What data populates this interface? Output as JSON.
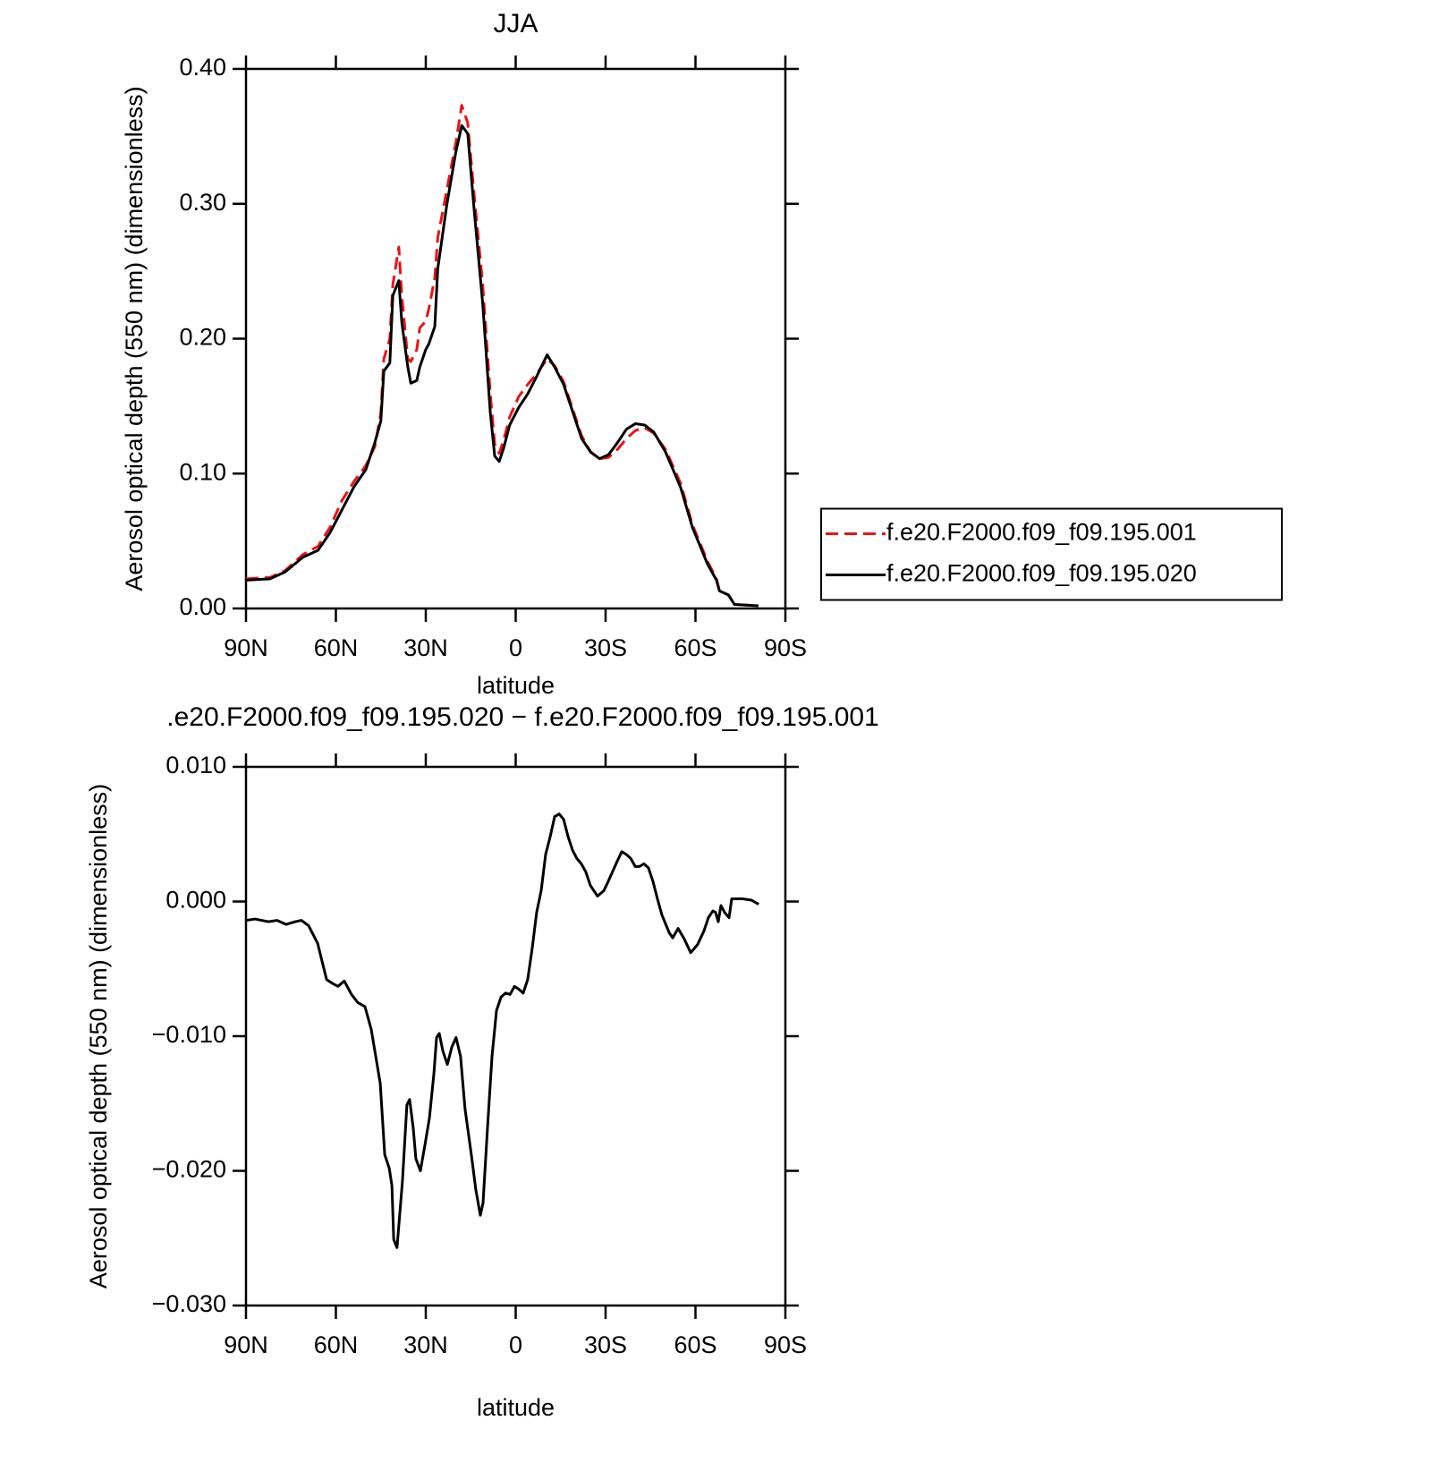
{
  "chart_data": [
    {
      "type": "line",
      "title": "JJA",
      "xlabel": "latitude",
      "ylabel": "Aerosol optical depth (550 nm) (dimensionless)",
      "x": [
        90,
        82,
        77,
        71,
        66,
        62,
        58,
        54,
        50,
        47,
        45,
        44,
        42,
        41,
        39,
        38,
        36,
        35,
        33,
        32,
        30,
        29,
        27,
        26,
        23,
        20,
        18,
        16,
        14,
        11,
        8.5,
        7,
        5.5,
        4,
        2,
        -1,
        -4,
        -7,
        -10.5,
        -13,
        -16,
        -19,
        -22,
        -25,
        -28,
        -31,
        -34,
        -37,
        -40,
        -43,
        -46,
        -50,
        -55,
        -59,
        -64,
        -67,
        -68,
        -71,
        -73,
        -81
      ],
      "series": [
        {
          "name": "f.e20.F2000.f09_f09.195.001",
          "color": "#e8141a",
          "dash": true,
          "values": [
            0.022,
            0.023,
            0.028,
            0.04,
            0.046,
            0.06,
            0.08,
            0.094,
            0.106,
            0.12,
            0.145,
            0.185,
            0.2,
            0.24,
            0.268,
            0.232,
            0.185,
            0.183,
            0.192,
            0.208,
            0.213,
            0.222,
            0.245,
            0.275,
            0.31,
            0.345,
            0.373,
            0.36,
            0.31,
            0.24,
            0.16,
            0.122,
            0.115,
            0.125,
            0.142,
            0.157,
            0.166,
            0.174,
            0.185,
            0.18,
            0.168,
            0.148,
            0.128,
            0.116,
            0.111,
            0.112,
            0.118,
            0.126,
            0.132,
            0.134,
            0.13,
            0.118,
            0.093,
            0.062,
            0.035,
            0.022,
            0.013,
            0.01,
            0.003,
            0.002
          ]
        },
        {
          "name": "f.e20.F2000.f09_f09.195.020",
          "color": "#000000",
          "dash": false,
          "values": [
            0.021,
            0.022,
            0.027,
            0.038,
            0.043,
            0.056,
            0.073,
            0.09,
            0.103,
            0.123,
            0.139,
            0.176,
            0.182,
            0.232,
            0.243,
            0.212,
            0.179,
            0.167,
            0.169,
            0.179,
            0.192,
            0.196,
            0.209,
            0.252,
            0.299,
            0.338,
            0.358,
            0.352,
            0.299,
            0.226,
            0.146,
            0.113,
            0.109,
            0.119,
            0.136,
            0.149,
            0.159,
            0.172,
            0.188,
            0.179,
            0.166,
            0.146,
            0.126,
            0.116,
            0.111,
            0.114,
            0.123,
            0.133,
            0.137,
            0.136,
            0.131,
            0.116,
            0.09,
            0.06,
            0.033,
            0.021,
            0.013,
            0.01,
            0.003,
            0.002
          ]
        }
      ],
      "xlim": [
        90,
        -90
      ],
      "xticks": [
        {
          "value": 90,
          "label": "90N"
        },
        {
          "value": 60,
          "label": "60N"
        },
        {
          "value": 30,
          "label": "30N"
        },
        0,
        {
          "value": -30,
          "label": "30S"
        },
        {
          "value": -60,
          "label": "60S"
        },
        {
          "value": -90,
          "label": "90S"
        }
      ],
      "ylim": [
        0,
        0.4
      ],
      "yticks": [
        {
          "value": 0,
          "label": "0.00"
        },
        {
          "value": 0.1,
          "label": "0.10"
        },
        {
          "value": 0.2,
          "label": "0.20"
        },
        {
          "value": 0.3,
          "label": "0.30"
        },
        {
          "value": 0.4,
          "label": "0.40"
        }
      ],
      "legend": "right"
    },
    {
      "type": "line",
      "title": ".e20.F2000.f09_f09.195.020 − f.e20.F2000.f09_f09.195.001",
      "xlabel": "latitude",
      "ylabel": "Aerosol optical depth (550 nm) (dimensionless)",
      "x": [
        90,
        87,
        82.5,
        79.6,
        76.6,
        73.6,
        71.5,
        69.1,
        66.1,
        63.1,
        61,
        59.3,
        57.2,
        54.8,
        52.7,
        50.3,
        48.2,
        45.2,
        43.7,
        42.2,
        41.3,
        40.7,
        39.6,
        37.8,
        36.3,
        35.4,
        34.2,
        33.3,
        31.8,
        30.3,
        28.8,
        27.3,
        26.4,
        25.5,
        24.3,
        22.8,
        21.3,
        19.9,
        18.4,
        16.9,
        14.8,
        13.3,
        11.8,
        10.9,
        9.4,
        7.9,
        6.4,
        4.9,
        3.4,
        1.9,
        0.4,
        -1,
        -2.5,
        -4,
        -5.5,
        -7,
        -8.5,
        -10,
        -11.5,
        -13,
        -14.5,
        -16,
        -17.5,
        -19,
        -20.4,
        -21.9,
        -23.4,
        -24.9,
        -27.3,
        -29.4,
        -30.9,
        -33.9,
        -35.4,
        -36.9,
        -38.4,
        -39.9,
        -41.3,
        -42.8,
        -44.3,
        -45.8,
        -47.3,
        -48.8,
        -51.2,
        -52.4,
        -54.2,
        -56.3,
        -58.4,
        -60.7,
        -62.8,
        -64.3,
        -65.8,
        -66.7,
        -67.6,
        -68.5,
        -69.7,
        -71.2,
        -72.1,
        -75.7,
        -78.7,
        -81.1
      ],
      "series": [
        {
          "color": "#000000",
          "dash": false,
          "values": [
            -0.0014,
            -0.0013,
            -0.0015,
            -0.0014,
            -0.0017,
            -0.0015,
            -0.0014,
            -0.0018,
            -0.0031,
            -0.0058,
            -0.0061,
            -0.0063,
            -0.0059,
            -0.0069,
            -0.0075,
            -0.0078,
            -0.0095,
            -0.0135,
            -0.0188,
            -0.0198,
            -0.0211,
            -0.0251,
            -0.0257,
            -0.0208,
            -0.0151,
            -0.0147,
            -0.0168,
            -0.0191,
            -0.02,
            -0.0181,
            -0.0161,
            -0.0128,
            -0.0101,
            -0.0098,
            -0.0111,
            -0.0121,
            -0.0108,
            -0.0101,
            -0.0115,
            -0.0154,
            -0.0188,
            -0.0214,
            -0.0233,
            -0.0224,
            -0.0168,
            -0.0115,
            -0.0081,
            -0.0071,
            -0.0068,
            -0.0069,
            -0.0063,
            -0.0065,
            -0.0068,
            -0.0058,
            -0.0035,
            -0.0008,
            0.0008,
            0.0035,
            0.0048,
            0.0063,
            0.0065,
            0.0061,
            0.0048,
            0.0038,
            0.0032,
            0.0028,
            0.0022,
            0.0012,
            0.0004,
            0.0008,
            0.0015,
            0.003,
            0.0037,
            0.0035,
            0.0032,
            0.0026,
            0.0026,
            0.0028,
            0.0025,
            0.0015,
            0.0002,
            -0.001,
            -0.0023,
            -0.0027,
            -0.002,
            -0.0028,
            -0.0038,
            -0.0032,
            -0.0022,
            -0.0012,
            -0.0007,
            -0.0008,
            -0.0015,
            -0.0003,
            -0.0008,
            -0.0012,
            0.0002,
            0.0002,
            0.0001,
            -0.0002
          ]
        }
      ],
      "xlim": [
        90,
        -90
      ],
      "xticks": [
        {
          "value": 90,
          "label": "90N"
        },
        {
          "value": 60,
          "label": "60N"
        },
        {
          "value": 30,
          "label": "30N"
        },
        0,
        {
          "value": -30,
          "label": "30S"
        },
        {
          "value": -60,
          "label": "60S"
        },
        {
          "value": -90,
          "label": "90S"
        }
      ],
      "ylim": [
        -0.03,
        0.01
      ],
      "yticks": [
        {
          "value": -0.03,
          "label": "−0.030"
        },
        {
          "value": -0.02,
          "label": "−0.020"
        },
        {
          "value": -0.01,
          "label": "−0.010"
        },
        {
          "value": 0,
          "label": "0.000"
        },
        {
          "value": 0.01,
          "label": "0.010"
        }
      ]
    }
  ]
}
